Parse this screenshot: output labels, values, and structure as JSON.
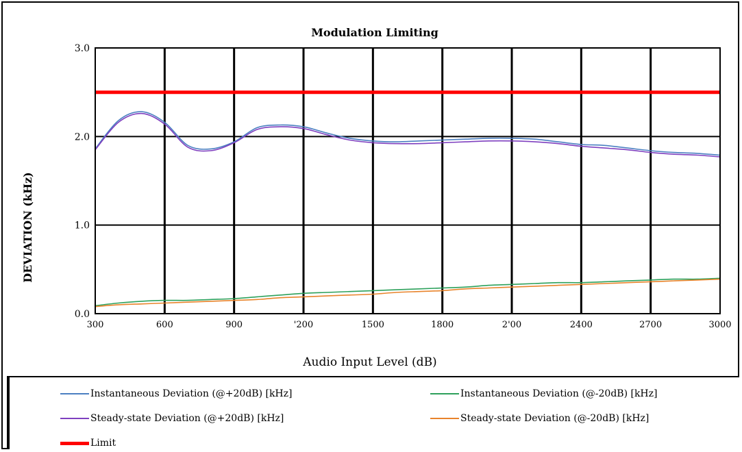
{
  "chart_data": {
    "type": "line",
    "title": "Modulation Limiting",
    "xlabel": "Audio Input Level (dB)",
    "ylabel": "DEVIATION (kHz)",
    "xlim": [
      300,
      3000
    ],
    "ylim": [
      0.0,
      3.0
    ],
    "xticks": [
      "300",
      "600",
      "900",
      "'200",
      "1500",
      "1800",
      "2'00",
      "2400",
      "2700",
      "3000"
    ],
    "yticks": [
      "0.0",
      "1.0",
      "2.0",
      "3.0"
    ],
    "grid": true,
    "legend_position": "bottom",
    "x": [
      300,
      400,
      500,
      600,
      700,
      800,
      900,
      1000,
      1100,
      1200,
      1300,
      1400,
      1500,
      1600,
      1700,
      1800,
      1900,
      2000,
      2100,
      2200,
      2300,
      2400,
      2500,
      2600,
      2700,
      2800,
      2900,
      3000
    ],
    "series": [
      {
        "name": "Instantaneous Deviation (@+20dB) [kHz]",
        "color": "#4a7fc1",
        "values": [
          1.86,
          2.18,
          2.28,
          2.16,
          1.9,
          1.86,
          1.94,
          2.1,
          2.13,
          2.11,
          2.04,
          1.98,
          1.95,
          1.94,
          1.95,
          1.96,
          1.97,
          1.98,
          1.98,
          1.97,
          1.94,
          1.91,
          1.9,
          1.87,
          1.84,
          1.82,
          1.81,
          1.79
        ]
      },
      {
        "name": "Steady-state Deviation (@+20dB) [kHz]",
        "color": "#7e3fbf",
        "values": [
          1.85,
          2.16,
          2.26,
          2.14,
          1.88,
          1.84,
          1.93,
          2.08,
          2.11,
          2.09,
          2.02,
          1.96,
          1.93,
          1.92,
          1.92,
          1.93,
          1.94,
          1.95,
          1.95,
          1.94,
          1.92,
          1.89,
          1.87,
          1.85,
          1.82,
          1.8,
          1.79,
          1.77
        ]
      },
      {
        "name": "Instantaneous Deviation (@-20dB) [kHz]",
        "color": "#2ca05a",
        "values": [
          0.09,
          0.12,
          0.14,
          0.15,
          0.15,
          0.16,
          0.17,
          0.19,
          0.21,
          0.23,
          0.24,
          0.25,
          0.26,
          0.27,
          0.28,
          0.29,
          0.3,
          0.32,
          0.33,
          0.34,
          0.35,
          0.35,
          0.36,
          0.37,
          0.38,
          0.39,
          0.39,
          0.4
        ]
      },
      {
        "name": "Steady-state Deviation (@-20dB) [kHz]",
        "color": "#e8832a",
        "values": [
          0.08,
          0.1,
          0.11,
          0.12,
          0.13,
          0.14,
          0.15,
          0.16,
          0.18,
          0.19,
          0.2,
          0.21,
          0.22,
          0.24,
          0.25,
          0.26,
          0.28,
          0.29,
          0.3,
          0.31,
          0.32,
          0.33,
          0.34,
          0.35,
          0.36,
          0.37,
          0.38,
          0.39
        ]
      },
      {
        "name": "Limit",
        "color": "#ff0000",
        "values": [
          2.5,
          2.5,
          2.5,
          2.5,
          2.5,
          2.5,
          2.5,
          2.5,
          2.5,
          2.5,
          2.5,
          2.5,
          2.5,
          2.5,
          2.5,
          2.5,
          2.5,
          2.5,
          2.5,
          2.5,
          2.5,
          2.5,
          2.5,
          2.5,
          2.5,
          2.5,
          2.5,
          2.5
        ]
      }
    ],
    "legend_labels": {
      "inst_plus": "Instantaneous Deviation (@+20dB) [kHz]",
      "inst_minus": "Instantaneous Deviation (@-20dB) [kHz]",
      "steady_plus": "Steady-state Deviation (@+20dB) [kHz]",
      "steady_minus": "Steady-state Deviation (@-20dB) [kHz]",
      "limit": "Limit"
    }
  }
}
